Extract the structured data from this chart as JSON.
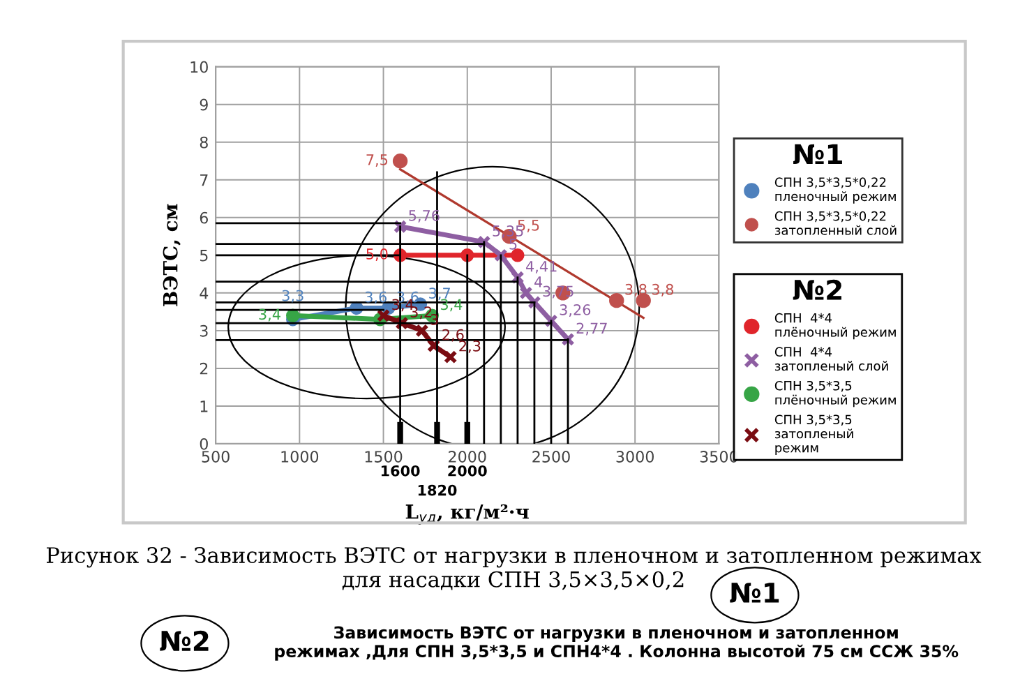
{
  "chart_data": {
    "type": "line",
    "xlabel": "L$_{уд}$, кг/м²·ч",
    "ylabel": "ВЭТС, см",
    "legend_title": [
      "№1",
      "№2"
    ],
    "legend": [
      "right",
      "bottom right"
    ],
    "grid": true,
    "xlim": [
      500,
      3500
    ],
    "ylim": [
      0,
      10
    ],
    "xticks": [
      500,
      1000,
      1500,
      2000,
      2500,
      3000,
      3500
    ],
    "yticks": [
      0,
      1,
      2,
      3,
      4,
      5,
      6,
      7,
      8,
      9,
      10
    ],
    "series": [
      {
        "name": "СПН 3,5*3,5*0,22\nпленочный режим",
        "color": "#4f81bd",
        "marker": "circle",
        "x": [
          960,
          1340,
          1530,
          1720
        ],
        "values": [
          3.3,
          3.6,
          3.6,
          3.7
        ],
        "value_labels": [
          "3,3",
          "3,6",
          "3,6",
          "3,7"
        ]
      },
      {
        "name": "СПН 3,5*3,5*0,22\nзатопленный слой",
        "color": "#c0504d",
        "type": "scatter",
        "marker": "circle",
        "x": [
          1600,
          2250,
          2570,
          2890,
          3050
        ],
        "values": [
          7.5,
          5.5,
          4.0,
          3.8,
          3.8
        ],
        "value_labels": [
          "7,5",
          "5,5",
          null,
          "3,8",
          "3,8"
        ]
      },
      {
        "color": "#b0392e",
        "type": "line",
        "marker": "none",
        "x": [
          1600,
          3050
        ],
        "values": [
          7.28,
          3.34
        ]
      },
      {
        "name": "СПН  4*4\nплёночный режим",
        "color": "#e0252b",
        "marker": "circle",
        "x": [
          1600,
          2000,
          2300
        ],
        "values": [
          5.0,
          5.0,
          5.0
        ],
        "value_labels": [
          "5,0",
          null,
          null
        ]
      },
      {
        "name": "СПН  4*4\nзатопленый слой",
        "color": "#8e5ea2",
        "marker": "cross",
        "x": [
          1600,
          2100,
          2200,
          2300,
          2350,
          2400,
          2500,
          2600
        ],
        "values": [
          5.76,
          5.35,
          5.0,
          4.41,
          4.0,
          3.75,
          3.26,
          2.77
        ],
        "value_labels": [
          "5,76",
          "5,35",
          "5",
          "4,41",
          "4",
          "3,75",
          "3,26",
          "2,77"
        ]
      },
      {
        "name": "СПН 3,5*3,5\nплёночный режим",
        "color": "#37a546",
        "marker": "circle",
        "x": [
          960,
          1480,
          1790
        ],
        "values": [
          3.4,
          3.3,
          3.4
        ],
        "value_labels": [
          "3,4",
          null,
          "3,4"
        ]
      },
      {
        "name": "СПН 3,5*3,5\nзатопленый\nрежим",
        "color": "#7a0c12",
        "marker": "cross",
        "x": [
          1500,
          1610,
          1730,
          1800,
          1900
        ],
        "values": [
          3.4,
          3.2,
          3.0,
          2.6,
          2.3
        ],
        "value_labels": [
          "3,4",
          "3,2",
          "3",
          "2,6",
          "2,3"
        ]
      },
      {
        "color": "#000000",
        "type": "line",
        "marker": "none",
        "x": [
          1600,
          1600
        ],
        "values": [
          0,
          5.76
        ]
      },
      {
        "color": "#000000",
        "type": "line",
        "marker": "none",
        "x": [
          1820,
          1820
        ],
        "values": [
          0,
          7.2
        ]
      },
      {
        "color": "#000000",
        "type": "line",
        "marker": "none",
        "x": [
          2000,
          2000
        ],
        "values": [
          0,
          5.0
        ]
      },
      {
        "color": "#000000",
        "type": "line",
        "marker": "none",
        "x": [
          2100,
          2100
        ],
        "values": [
          0,
          5.35
        ]
      },
      {
        "color": "#000000",
        "type": "line",
        "marker": "none",
        "x": [
          2200,
          2200
        ],
        "values": [
          0,
          5.0
        ]
      },
      {
        "color": "#000000",
        "type": "line",
        "marker": "none",
        "x": [
          2300,
          2300
        ],
        "values": [
          0,
          4.41
        ]
      },
      {
        "color": "#000000",
        "type": "line",
        "marker": "none",
        "x": [
          2400,
          2400
        ],
        "values": [
          0,
          3.75
        ]
      },
      {
        "color": "#000000",
        "type": "line",
        "marker": "none",
        "x": [
          2500,
          2500
        ],
        "values": [
          0,
          3.26
        ]
      },
      {
        "color": "#000000",
        "type": "line",
        "marker": "none",
        "x": [
          2600,
          2600
        ],
        "values": [
          0,
          2.77
        ]
      },
      {
        "color": "#000000",
        "type": "line",
        "marker": "none",
        "x": [
          500,
          1600
        ],
        "values": [
          5.85,
          5.85
        ]
      },
      {
        "color": "#000000",
        "type": "line",
        "marker": "none",
        "x": [
          500,
          2100
        ],
        "values": [
          5.3,
          5.3
        ]
      },
      {
        "color": "#000000",
        "type": "line",
        "marker": "none",
        "x": [
          500,
          1600
        ],
        "values": [
          5.0,
          5.0
        ]
      },
      {
        "color": "#000000",
        "type": "line",
        "marker": "none",
        "x": [
          500,
          2300
        ],
        "values": [
          4.3,
          4.3
        ]
      },
      {
        "color": "#000000",
        "type": "line",
        "marker": "none",
        "x": [
          500,
          2400
        ],
        "values": [
          3.75,
          3.75
        ]
      },
      {
        "color": "#000000",
        "type": "line",
        "marker": "none",
        "x": [
          500,
          1500
        ],
        "values": [
          3.55,
          3.55
        ]
      },
      {
        "color": "#000000",
        "type": "line",
        "marker": "none",
        "x": [
          500,
          2500
        ],
        "values": [
          3.2,
          3.2
        ]
      },
      {
        "color": "#000000",
        "type": "line",
        "marker": "none",
        "x": [
          500,
          2600
        ],
        "values": [
          2.75,
          2.75
        ]
      }
    ],
    "annotations": [
      {
        "text": "1600",
        "x": 1600,
        "y": 0
      },
      {
        "text": "1820",
        "x": 1820,
        "y": 0
      },
      {
        "text": "2000",
        "x": 2000,
        "y": 0
      },
      "Рисунок 32 - Зависимость ВЭТС от нагрузки в пленочном и затопленном режимах\nдля насадки СПН 3,5×3,5×0,2",
      "№1",
      "№2",
      "Зависимость ВЭТС от нагрузки в пленочном и затопленном\nрежимах ,Для СПН 3,5*3,5 и СПН4*4 . Колонна высотой 75 см ССЖ 35%"
    ]
  }
}
